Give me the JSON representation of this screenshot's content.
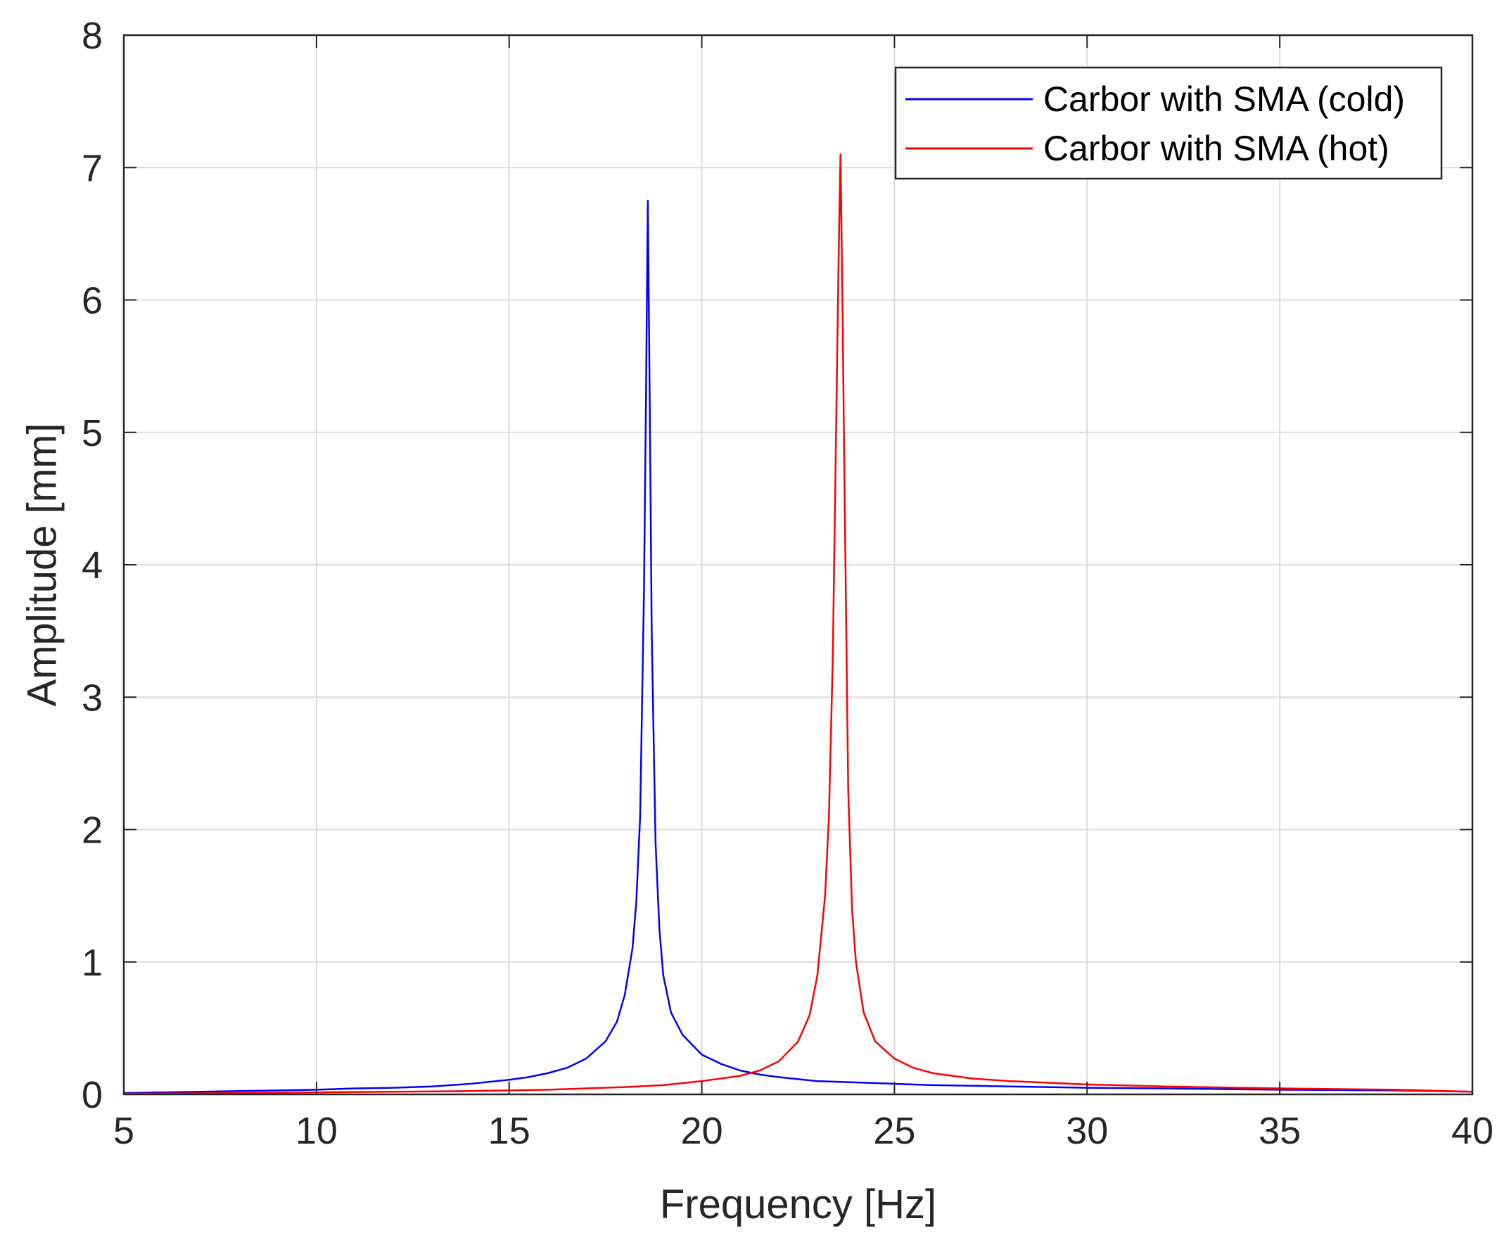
{
  "chart_data": {
    "type": "line",
    "title": "",
    "xlabel": "Frequency [Hz]",
    "ylabel": "Amplitude [mm]",
    "xlim": [
      5,
      40
    ],
    "ylim": [
      0,
      8
    ],
    "xticks": [
      5,
      10,
      15,
      20,
      25,
      30,
      35,
      40
    ],
    "yticks": [
      0,
      1,
      2,
      3,
      4,
      5,
      6,
      7,
      8
    ],
    "xtick_labels": [
      "5",
      "10",
      "15",
      "20",
      "25",
      "30",
      "35",
      "40"
    ],
    "ytick_labels": [
      "0",
      "1",
      "2",
      "3",
      "4",
      "5",
      "6",
      "7",
      "8"
    ],
    "grid": true,
    "legend_position": "top-right",
    "series": [
      {
        "name": "Carbor with SMA (cold)",
        "color": "#0000ff",
        "x": [
          5,
          6,
          7,
          8,
          9,
          10,
          11,
          12,
          13,
          14,
          15,
          15.5,
          16,
          16.5,
          17,
          17.5,
          17.8,
          18,
          18.2,
          18.3,
          18.4,
          18.5,
          18.55,
          18.6,
          18.65,
          18.7,
          18.8,
          18.9,
          19,
          19.2,
          19.5,
          20,
          20.5,
          21,
          21.5,
          22,
          23,
          24,
          25,
          26,
          28,
          30,
          32,
          35,
          38,
          40
        ],
        "y": [
          0.01,
          0.015,
          0.02,
          0.025,
          0.03,
          0.035,
          0.045,
          0.05,
          0.06,
          0.08,
          0.11,
          0.13,
          0.16,
          0.2,
          0.27,
          0.4,
          0.55,
          0.75,
          1.1,
          1.45,
          2.1,
          3.8,
          5.2,
          6.75,
          5.2,
          3.5,
          1.9,
          1.25,
          0.9,
          0.62,
          0.45,
          0.3,
          0.23,
          0.18,
          0.15,
          0.13,
          0.1,
          0.09,
          0.08,
          0.07,
          0.06,
          0.05,
          0.045,
          0.035,
          0.03,
          0.02
        ]
      },
      {
        "name": "Carbor with SMA (hot)",
        "color": "#ff0000",
        "x": [
          5,
          8,
          10,
          12,
          14,
          16,
          18,
          19,
          20,
          21,
          21.5,
          22,
          22.5,
          22.8,
          23,
          23.2,
          23.3,
          23.4,
          23.5,
          23.55,
          23.6,
          23.65,
          23.7,
          23.8,
          23.9,
          24,
          24.2,
          24.5,
          25,
          25.5,
          26,
          27,
          28,
          30,
          32,
          35,
          38,
          40
        ],
        "y": [
          0.005,
          0.01,
          0.015,
          0.02,
          0.025,
          0.035,
          0.055,
          0.07,
          0.1,
          0.14,
          0.18,
          0.25,
          0.4,
          0.6,
          0.9,
          1.5,
          2.1,
          3.3,
          5.3,
          6.3,
          7.1,
          6.0,
          4.7,
          2.3,
          1.4,
          1.0,
          0.62,
          0.4,
          0.27,
          0.2,
          0.16,
          0.12,
          0.1,
          0.075,
          0.06,
          0.045,
          0.035,
          0.02
        ]
      }
    ]
  }
}
